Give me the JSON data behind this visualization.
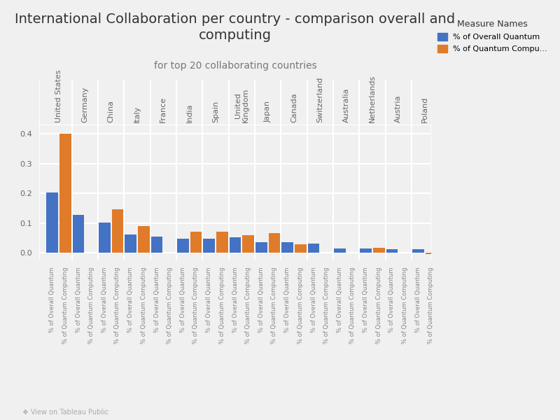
{
  "title": "International Collaboration per country - comparison overall and\ncomputing",
  "subtitle": "for top 20 collaborating countries",
  "legend_title": "Measure Names",
  "legend_labels": [
    "% of Overall Quantum",
    "% of Quantum Compu..."
  ],
  "countries": [
    "United States",
    "Germany",
    "China",
    "Italy",
    "France",
    "India",
    "Spain",
    "United\nKingdom",
    "Japan",
    "Canada",
    "Switzerland",
    "Australia",
    "Netherlands",
    "Austria",
    "Poland"
  ],
  "overall_values": [
    0.202,
    0.128,
    0.101,
    0.062,
    0.055,
    0.047,
    0.048,
    0.052,
    0.035,
    0.035,
    0.032,
    0.014,
    0.014,
    0.012,
    0.012
  ],
  "computing_values": [
    0.4,
    null,
    0.146,
    0.09,
    null,
    0.072,
    0.072,
    0.06,
    0.067,
    0.028,
    null,
    null,
    0.018,
    null,
    -0.005
  ],
  "bar_color_overall": "#4472c4",
  "bar_color_computing": "#e07b2a",
  "background_color": "#f0f0f0",
  "grid_color": "#ffffff",
  "ylim": [
    -0.025,
    0.43
  ],
  "yticks": [
    0.0,
    0.1,
    0.2,
    0.3,
    0.4
  ],
  "title_fontsize": 14,
  "subtitle_fontsize": 10,
  "tick_fontsize": 8,
  "country_fontsize": 8,
  "bar_width": 0.35
}
